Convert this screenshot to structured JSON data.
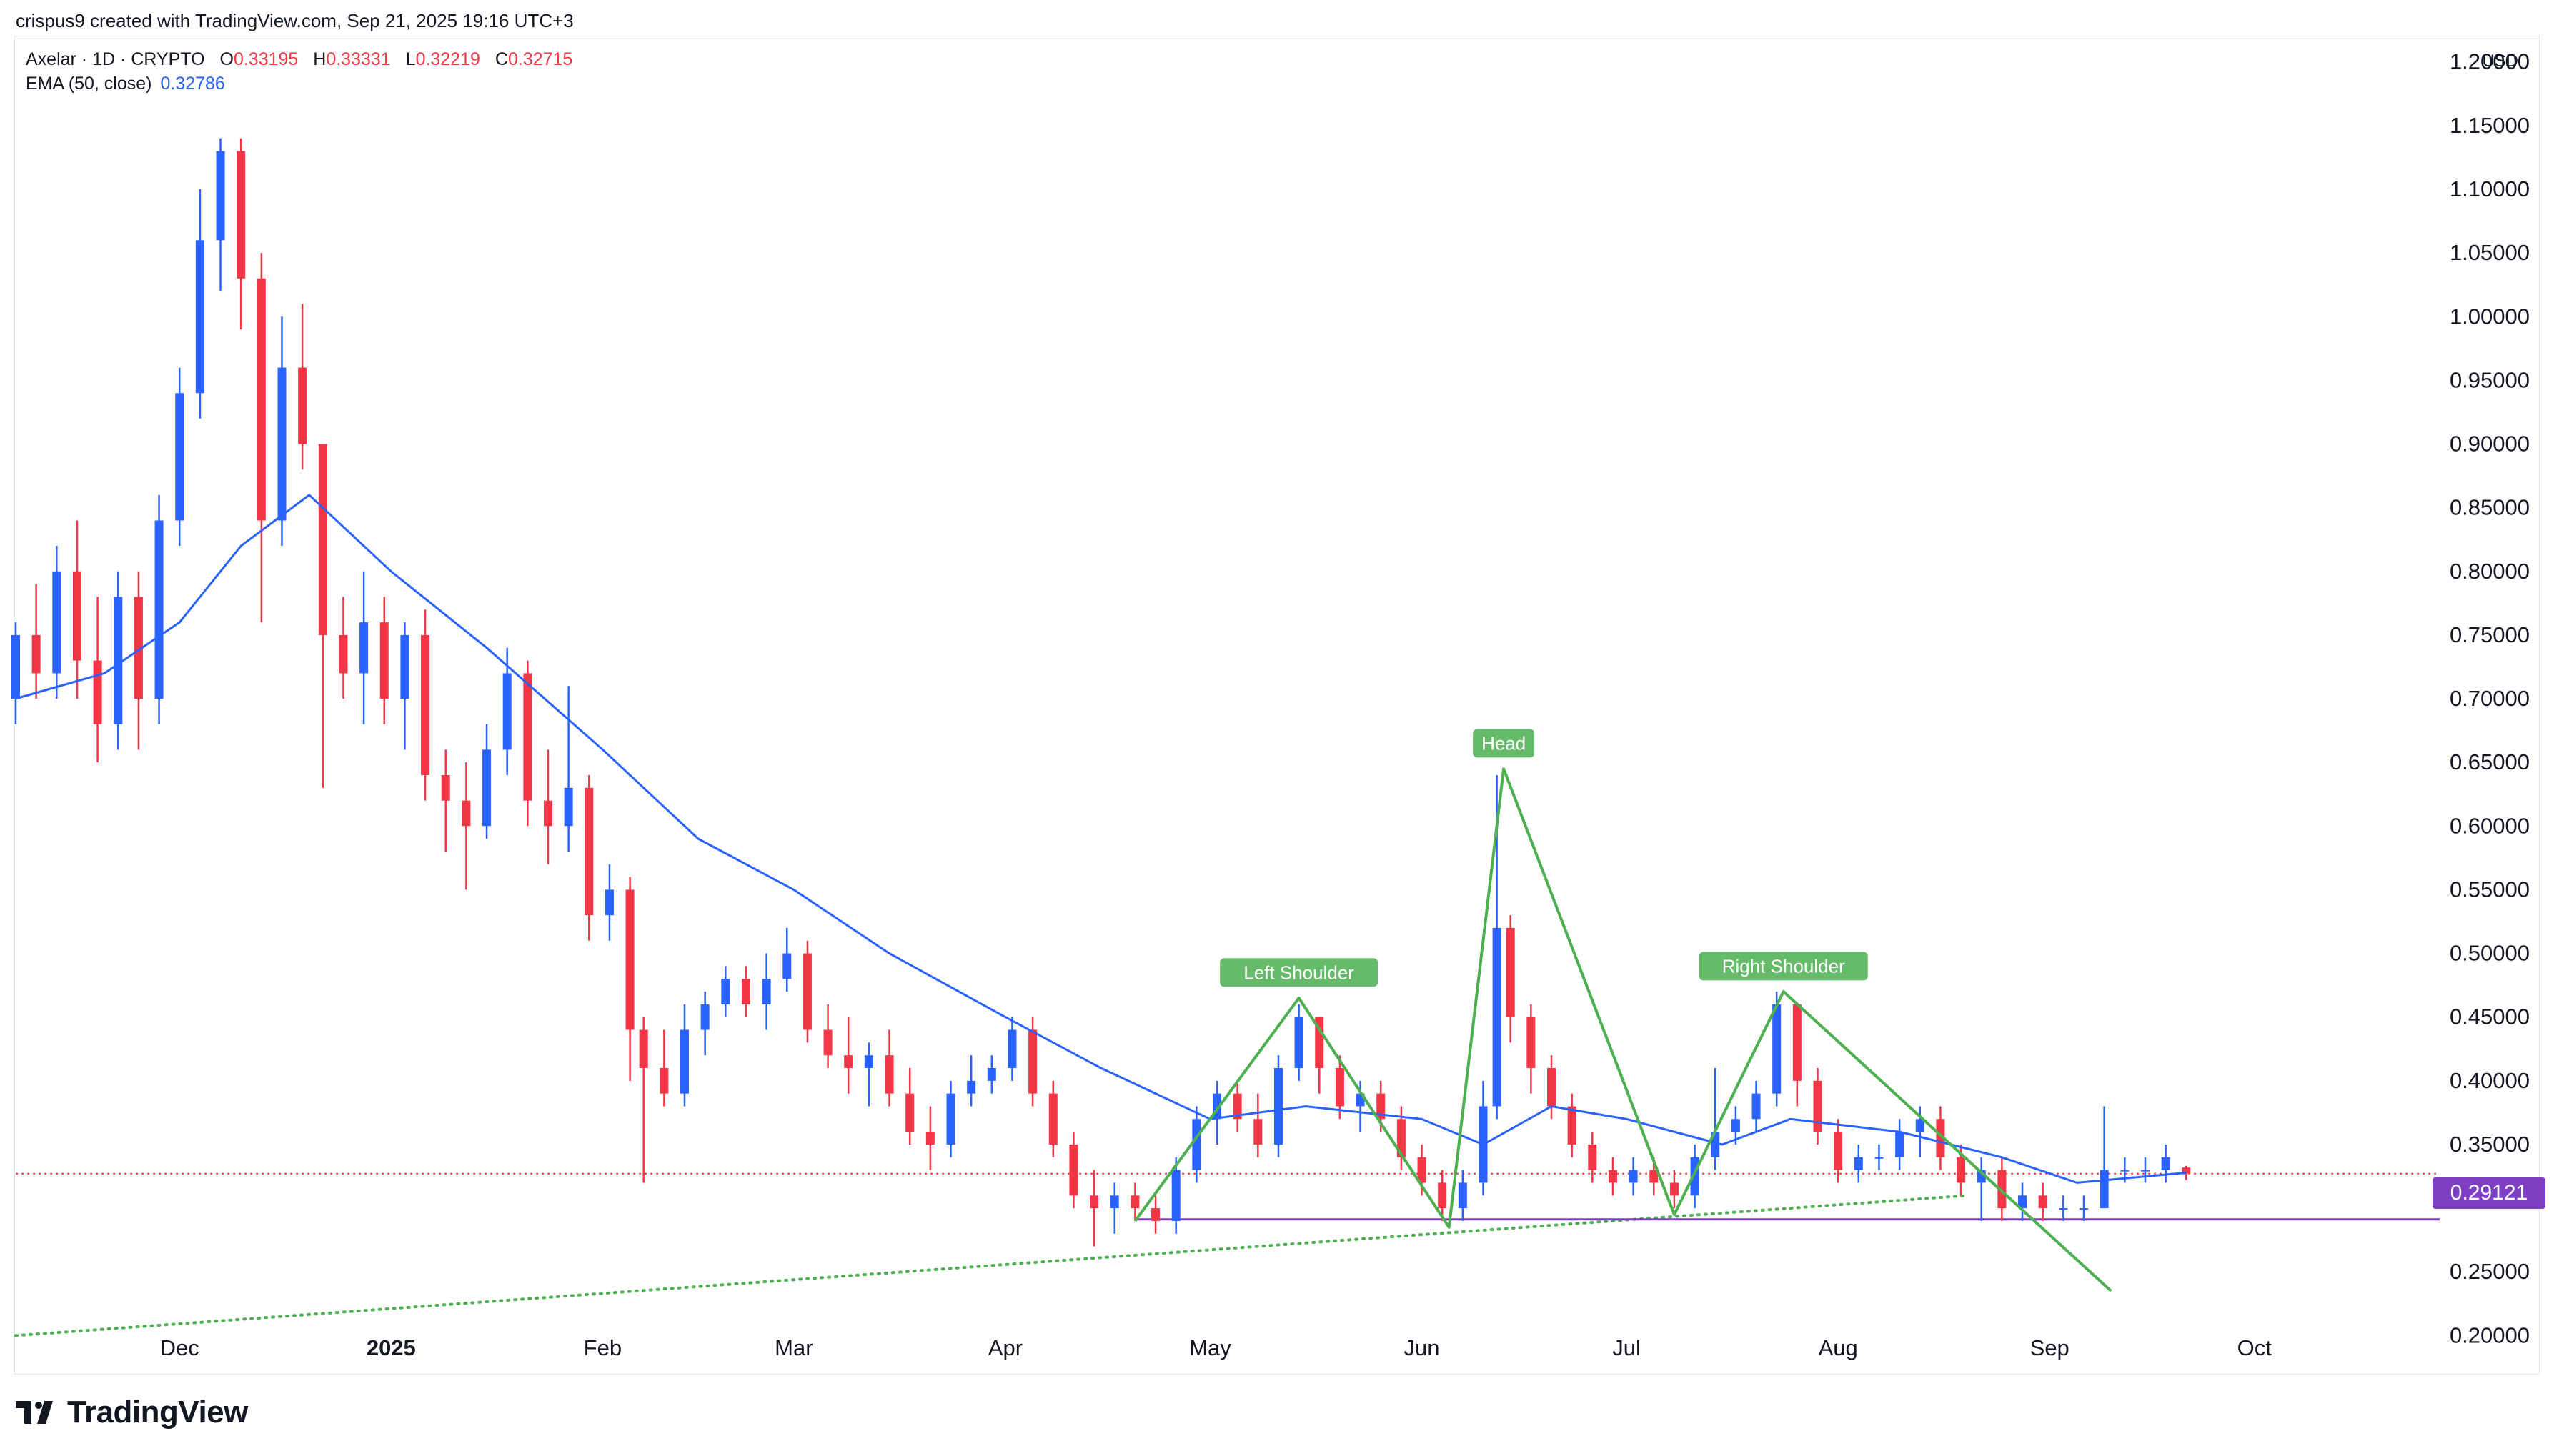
{
  "header": {
    "credit": "crispus9 created with TradingView.com, Sep 21, 2025 19:16 UTC+3"
  },
  "legend": {
    "symbol": "Axelar · 1D · CRYPTO",
    "o_label": "O",
    "o_value": "0.33195",
    "h_label": "H",
    "h_value": "0.33331",
    "l_label": "L",
    "l_value": "0.32219",
    "c_label": "C",
    "c_value": "0.32715",
    "ema_label": "EMA (50, close)",
    "ema_value": "0.32786"
  },
  "axis": {
    "currency": "USD"
  },
  "price_tag": "0.29121",
  "branding": {
    "logo_text": "TradingView"
  },
  "colors": {
    "up": "#2962ff",
    "down": "#f23645",
    "ema": "#2962ff",
    "pattern": "#4caf50",
    "support": "#7e3fc4",
    "last_price": "#f23645"
  },
  "chart_data": {
    "type": "candlestick",
    "ylim": [
      0.18,
      1.215
    ],
    "y_ticks": [
      0.2,
      0.25,
      0.35,
      0.4,
      0.45,
      0.5,
      0.55,
      0.6,
      0.65,
      0.7,
      0.75,
      0.8,
      0.85,
      0.9,
      0.95,
      1.0,
      1.05,
      1.1,
      1.15,
      1.2
    ],
    "y_tick_labels": [
      "0.20000",
      "0.25000",
      "0.35000",
      "0.40000",
      "0.45000",
      "0.50000",
      "0.55000",
      "0.60000",
      "0.65000",
      "0.70000",
      "0.75000",
      "0.80000",
      "0.85000",
      "0.90000",
      "0.95000",
      "1.00000",
      "1.05000",
      "1.10000",
      "1.15000",
      "1.20000"
    ],
    "x_start": "2024-11-07",
    "x_end": "2025-10-25",
    "x_labels": [
      {
        "date": "2024-12-01",
        "label": "Dec",
        "bold": false
      },
      {
        "date": "2025-01-01",
        "label": "2025",
        "bold": true
      },
      {
        "date": "2025-02-01",
        "label": "Feb",
        "bold": false
      },
      {
        "date": "2025-03-01",
        "label": "Mar",
        "bold": false
      },
      {
        "date": "2025-04-01",
        "label": "Apr",
        "bold": false
      },
      {
        "date": "2025-05-01",
        "label": "May",
        "bold": false
      },
      {
        "date": "2025-06-01",
        "label": "Jun",
        "bold": false
      },
      {
        "date": "2025-07-01",
        "label": "Jul",
        "bold": false
      },
      {
        "date": "2025-08-01",
        "label": "Aug",
        "bold": false
      },
      {
        "date": "2025-09-01",
        "label": "Sep",
        "bold": false
      },
      {
        "date": "2025-10-01",
        "label": "Oct",
        "bold": false
      }
    ],
    "candles": [
      {
        "date": "2024-11-07",
        "o": 0.7,
        "h": 0.76,
        "l": 0.68,
        "c": 0.75
      },
      {
        "date": "2024-11-10",
        "o": 0.75,
        "h": 0.79,
        "l": 0.7,
        "c": 0.72
      },
      {
        "date": "2024-11-13",
        "o": 0.72,
        "h": 0.82,
        "l": 0.7,
        "c": 0.8
      },
      {
        "date": "2024-11-16",
        "o": 0.8,
        "h": 0.84,
        "l": 0.7,
        "c": 0.73
      },
      {
        "date": "2024-11-19",
        "o": 0.73,
        "h": 0.78,
        "l": 0.65,
        "c": 0.68
      },
      {
        "date": "2024-11-22",
        "o": 0.68,
        "h": 0.8,
        "l": 0.66,
        "c": 0.78
      },
      {
        "date": "2024-11-25",
        "o": 0.78,
        "h": 0.8,
        "l": 0.66,
        "c": 0.7
      },
      {
        "date": "2024-11-28",
        "o": 0.7,
        "h": 0.86,
        "l": 0.68,
        "c": 0.84
      },
      {
        "date": "2024-12-01",
        "o": 0.84,
        "h": 0.96,
        "l": 0.82,
        "c": 0.94
      },
      {
        "date": "2024-12-04",
        "o": 0.94,
        "h": 1.1,
        "l": 0.92,
        "c": 1.06
      },
      {
        "date": "2024-12-07",
        "o": 1.06,
        "h": 1.14,
        "l": 1.02,
        "c": 1.13
      },
      {
        "date": "2024-12-10",
        "o": 1.13,
        "h": 1.14,
        "l": 0.99,
        "c": 1.03
      },
      {
        "date": "2024-12-13",
        "o": 1.03,
        "h": 1.05,
        "l": 0.76,
        "c": 0.84
      },
      {
        "date": "2024-12-16",
        "o": 0.84,
        "h": 1.0,
        "l": 0.82,
        "c": 0.96
      },
      {
        "date": "2024-12-19",
        "o": 0.96,
        "h": 1.01,
        "l": 0.88,
        "c": 0.9
      },
      {
        "date": "2024-12-22",
        "o": 0.9,
        "h": 0.9,
        "l": 0.63,
        "c": 0.75
      },
      {
        "date": "2024-12-25",
        "o": 0.75,
        "h": 0.78,
        "l": 0.7,
        "c": 0.72
      },
      {
        "date": "2024-12-28",
        "o": 0.72,
        "h": 0.8,
        "l": 0.68,
        "c": 0.76
      },
      {
        "date": "2024-12-31",
        "o": 0.76,
        "h": 0.78,
        "l": 0.68,
        "c": 0.7
      },
      {
        "date": "2025-01-03",
        "o": 0.7,
        "h": 0.76,
        "l": 0.66,
        "c": 0.75
      },
      {
        "date": "2025-01-06",
        "o": 0.75,
        "h": 0.77,
        "l": 0.62,
        "c": 0.64
      },
      {
        "date": "2025-01-09",
        "o": 0.64,
        "h": 0.66,
        "l": 0.58,
        "c": 0.62
      },
      {
        "date": "2025-01-12",
        "o": 0.62,
        "h": 0.65,
        "l": 0.55,
        "c": 0.6
      },
      {
        "date": "2025-01-15",
        "o": 0.6,
        "h": 0.68,
        "l": 0.59,
        "c": 0.66
      },
      {
        "date": "2025-01-18",
        "o": 0.66,
        "h": 0.74,
        "l": 0.64,
        "c": 0.72
      },
      {
        "date": "2025-01-21",
        "o": 0.72,
        "h": 0.73,
        "l": 0.6,
        "c": 0.62
      },
      {
        "date": "2025-01-24",
        "o": 0.62,
        "h": 0.66,
        "l": 0.57,
        "c": 0.6
      },
      {
        "date": "2025-01-27",
        "o": 0.6,
        "h": 0.71,
        "l": 0.58,
        "c": 0.63
      },
      {
        "date": "2025-01-30",
        "o": 0.63,
        "h": 0.64,
        "l": 0.51,
        "c": 0.53
      },
      {
        "date": "2025-02-02",
        "o": 0.53,
        "h": 0.57,
        "l": 0.51,
        "c": 0.55
      },
      {
        "date": "2025-02-05",
        "o": 0.55,
        "h": 0.56,
        "l": 0.4,
        "c": 0.44
      },
      {
        "date": "2025-02-07",
        "o": 0.44,
        "h": 0.45,
        "l": 0.32,
        "c": 0.41
      },
      {
        "date": "2025-02-10",
        "o": 0.41,
        "h": 0.44,
        "l": 0.38,
        "c": 0.39
      },
      {
        "date": "2025-02-13",
        "o": 0.39,
        "h": 0.46,
        "l": 0.38,
        "c": 0.44
      },
      {
        "date": "2025-02-16",
        "o": 0.44,
        "h": 0.47,
        "l": 0.42,
        "c": 0.46
      },
      {
        "date": "2025-02-19",
        "o": 0.46,
        "h": 0.49,
        "l": 0.45,
        "c": 0.48
      },
      {
        "date": "2025-02-22",
        "o": 0.48,
        "h": 0.49,
        "l": 0.45,
        "c": 0.46
      },
      {
        "date": "2025-02-25",
        "o": 0.46,
        "h": 0.5,
        "l": 0.44,
        "c": 0.48
      },
      {
        "date": "2025-02-28",
        "o": 0.48,
        "h": 0.52,
        "l": 0.47,
        "c": 0.5
      },
      {
        "date": "2025-03-03",
        "o": 0.5,
        "h": 0.51,
        "l": 0.43,
        "c": 0.44
      },
      {
        "date": "2025-03-06",
        "o": 0.44,
        "h": 0.46,
        "l": 0.41,
        "c": 0.42
      },
      {
        "date": "2025-03-09",
        "o": 0.42,
        "h": 0.45,
        "l": 0.39,
        "c": 0.41
      },
      {
        "date": "2025-03-12",
        "o": 0.41,
        "h": 0.43,
        "l": 0.38,
        "c": 0.42
      },
      {
        "date": "2025-03-15",
        "o": 0.42,
        "h": 0.44,
        "l": 0.38,
        "c": 0.39
      },
      {
        "date": "2025-03-18",
        "o": 0.39,
        "h": 0.41,
        "l": 0.35,
        "c": 0.36
      },
      {
        "date": "2025-03-21",
        "o": 0.36,
        "h": 0.38,
        "l": 0.33,
        "c": 0.35
      },
      {
        "date": "2025-03-24",
        "o": 0.35,
        "h": 0.4,
        "l": 0.34,
        "c": 0.39
      },
      {
        "date": "2025-03-27",
        "o": 0.39,
        "h": 0.42,
        "l": 0.38,
        "c": 0.4
      },
      {
        "date": "2025-03-30",
        "o": 0.4,
        "h": 0.42,
        "l": 0.39,
        "c": 0.41
      },
      {
        "date": "2025-04-02",
        "o": 0.41,
        "h": 0.45,
        "l": 0.4,
        "c": 0.44
      },
      {
        "date": "2025-04-05",
        "o": 0.44,
        "h": 0.45,
        "l": 0.38,
        "c": 0.39
      },
      {
        "date": "2025-04-08",
        "o": 0.39,
        "h": 0.4,
        "l": 0.34,
        "c": 0.35
      },
      {
        "date": "2025-04-11",
        "o": 0.35,
        "h": 0.36,
        "l": 0.3,
        "c": 0.31
      },
      {
        "date": "2025-04-14",
        "o": 0.31,
        "h": 0.33,
        "l": 0.27,
        "c": 0.3
      },
      {
        "date": "2025-04-17",
        "o": 0.3,
        "h": 0.32,
        "l": 0.28,
        "c": 0.31
      },
      {
        "date": "2025-04-20",
        "o": 0.31,
        "h": 0.32,
        "l": 0.29,
        "c": 0.3
      },
      {
        "date": "2025-04-23",
        "o": 0.3,
        "h": 0.31,
        "l": 0.28,
        "c": 0.29
      },
      {
        "date": "2025-04-26",
        "o": 0.29,
        "h": 0.34,
        "l": 0.28,
        "c": 0.33
      },
      {
        "date": "2025-04-29",
        "o": 0.33,
        "h": 0.38,
        "l": 0.32,
        "c": 0.37
      },
      {
        "date": "2025-05-02",
        "o": 0.37,
        "h": 0.4,
        "l": 0.35,
        "c": 0.39
      },
      {
        "date": "2025-05-05",
        "o": 0.39,
        "h": 0.4,
        "l": 0.36,
        "c": 0.37
      },
      {
        "date": "2025-05-08",
        "o": 0.37,
        "h": 0.39,
        "l": 0.34,
        "c": 0.35
      },
      {
        "date": "2025-05-11",
        "o": 0.35,
        "h": 0.42,
        "l": 0.34,
        "c": 0.41
      },
      {
        "date": "2025-05-14",
        "o": 0.41,
        "h": 0.46,
        "l": 0.4,
        "c": 0.45
      },
      {
        "date": "2025-05-17",
        "o": 0.45,
        "h": 0.45,
        "l": 0.39,
        "c": 0.41
      },
      {
        "date": "2025-05-20",
        "o": 0.41,
        "h": 0.42,
        "l": 0.37,
        "c": 0.38
      },
      {
        "date": "2025-05-23",
        "o": 0.38,
        "h": 0.4,
        "l": 0.36,
        "c": 0.39
      },
      {
        "date": "2025-05-26",
        "o": 0.39,
        "h": 0.4,
        "l": 0.36,
        "c": 0.37
      },
      {
        "date": "2025-05-29",
        "o": 0.37,
        "h": 0.38,
        "l": 0.33,
        "c": 0.34
      },
      {
        "date": "2025-06-01",
        "o": 0.34,
        "h": 0.35,
        "l": 0.31,
        "c": 0.32
      },
      {
        "date": "2025-06-04",
        "o": 0.32,
        "h": 0.33,
        "l": 0.29,
        "c": 0.3
      },
      {
        "date": "2025-06-07",
        "o": 0.3,
        "h": 0.33,
        "l": 0.29,
        "c": 0.32
      },
      {
        "date": "2025-06-10",
        "o": 0.32,
        "h": 0.4,
        "l": 0.31,
        "c": 0.38
      },
      {
        "date": "2025-06-12",
        "o": 0.38,
        "h": 0.64,
        "l": 0.37,
        "c": 0.52
      },
      {
        "date": "2025-06-14",
        "o": 0.52,
        "h": 0.53,
        "l": 0.43,
        "c": 0.45
      },
      {
        "date": "2025-06-17",
        "o": 0.45,
        "h": 0.46,
        "l": 0.39,
        "c": 0.41
      },
      {
        "date": "2025-06-20",
        "o": 0.41,
        "h": 0.42,
        "l": 0.37,
        "c": 0.38
      },
      {
        "date": "2025-06-23",
        "o": 0.38,
        "h": 0.39,
        "l": 0.34,
        "c": 0.35
      },
      {
        "date": "2025-06-26",
        "o": 0.35,
        "h": 0.36,
        "l": 0.32,
        "c": 0.33
      },
      {
        "date": "2025-06-29",
        "o": 0.33,
        "h": 0.34,
        "l": 0.31,
        "c": 0.32
      },
      {
        "date": "2025-07-02",
        "o": 0.32,
        "h": 0.34,
        "l": 0.31,
        "c": 0.33
      },
      {
        "date": "2025-07-05",
        "o": 0.33,
        "h": 0.34,
        "l": 0.31,
        "c": 0.32
      },
      {
        "date": "2025-07-08",
        "o": 0.32,
        "h": 0.33,
        "l": 0.3,
        "c": 0.31
      },
      {
        "date": "2025-07-11",
        "o": 0.31,
        "h": 0.35,
        "l": 0.3,
        "c": 0.34
      },
      {
        "date": "2025-07-14",
        "o": 0.34,
        "h": 0.41,
        "l": 0.33,
        "c": 0.36
      },
      {
        "date": "2025-07-17",
        "o": 0.36,
        "h": 0.38,
        "l": 0.35,
        "c": 0.37
      },
      {
        "date": "2025-07-20",
        "o": 0.37,
        "h": 0.4,
        "l": 0.36,
        "c": 0.39
      },
      {
        "date": "2025-07-23",
        "o": 0.39,
        "h": 0.47,
        "l": 0.38,
        "c": 0.46
      },
      {
        "date": "2025-07-26",
        "o": 0.46,
        "h": 0.46,
        "l": 0.38,
        "c": 0.4
      },
      {
        "date": "2025-07-29",
        "o": 0.4,
        "h": 0.41,
        "l": 0.35,
        "c": 0.36
      },
      {
        "date": "2025-08-01",
        "o": 0.36,
        "h": 0.37,
        "l": 0.32,
        "c": 0.33
      },
      {
        "date": "2025-08-04",
        "o": 0.33,
        "h": 0.35,
        "l": 0.32,
        "c": 0.34
      },
      {
        "date": "2025-08-07",
        "o": 0.34,
        "h": 0.35,
        "l": 0.33,
        "c": 0.34
      },
      {
        "date": "2025-08-10",
        "o": 0.34,
        "h": 0.37,
        "l": 0.33,
        "c": 0.36
      },
      {
        "date": "2025-08-13",
        "o": 0.36,
        "h": 0.38,
        "l": 0.34,
        "c": 0.37
      },
      {
        "date": "2025-08-16",
        "o": 0.37,
        "h": 0.38,
        "l": 0.33,
        "c": 0.34
      },
      {
        "date": "2025-08-19",
        "o": 0.34,
        "h": 0.35,
        "l": 0.31,
        "c": 0.32
      },
      {
        "date": "2025-08-22",
        "o": 0.32,
        "h": 0.34,
        "l": 0.29,
        "c": 0.33
      },
      {
        "date": "2025-08-25",
        "o": 0.33,
        "h": 0.34,
        "l": 0.29,
        "c": 0.3
      },
      {
        "date": "2025-08-28",
        "o": 0.3,
        "h": 0.32,
        "l": 0.29,
        "c": 0.31
      },
      {
        "date": "2025-08-31",
        "o": 0.31,
        "h": 0.32,
        "l": 0.29,
        "c": 0.3
      },
      {
        "date": "2025-09-03",
        "o": 0.3,
        "h": 0.31,
        "l": 0.29,
        "c": 0.3
      },
      {
        "date": "2025-09-06",
        "o": 0.3,
        "h": 0.31,
        "l": 0.29,
        "c": 0.3
      },
      {
        "date": "2025-09-09",
        "o": 0.3,
        "h": 0.38,
        "l": 0.3,
        "c": 0.33
      },
      {
        "date": "2025-09-12",
        "o": 0.33,
        "h": 0.34,
        "l": 0.32,
        "c": 0.33
      },
      {
        "date": "2025-09-15",
        "o": 0.33,
        "h": 0.34,
        "l": 0.32,
        "c": 0.33
      },
      {
        "date": "2025-09-18",
        "o": 0.33,
        "h": 0.35,
        "l": 0.32,
        "c": 0.34
      },
      {
        "date": "2025-09-21",
        "o": 0.33195,
        "h": 0.33331,
        "l": 0.32219,
        "c": 0.32715
      }
    ],
    "ema": [
      {
        "date": "2024-11-07",
        "v": 0.7
      },
      {
        "date": "2024-11-20",
        "v": 0.72
      },
      {
        "date": "2024-12-01",
        "v": 0.76
      },
      {
        "date": "2024-12-10",
        "v": 0.82
      },
      {
        "date": "2024-12-20",
        "v": 0.86
      },
      {
        "date": "2025-01-01",
        "v": 0.8
      },
      {
        "date": "2025-01-15",
        "v": 0.74
      },
      {
        "date": "2025-02-01",
        "v": 0.66
      },
      {
        "date": "2025-02-15",
        "v": 0.59
      },
      {
        "date": "2025-03-01",
        "v": 0.55
      },
      {
        "date": "2025-03-15",
        "v": 0.5
      },
      {
        "date": "2025-04-01",
        "v": 0.45
      },
      {
        "date": "2025-04-15",
        "v": 0.41
      },
      {
        "date": "2025-05-01",
        "v": 0.37
      },
      {
        "date": "2025-05-15",
        "v": 0.38
      },
      {
        "date": "2025-06-01",
        "v": 0.37
      },
      {
        "date": "2025-06-10",
        "v": 0.35
      },
      {
        "date": "2025-06-20",
        "v": 0.38
      },
      {
        "date": "2025-07-01",
        "v": 0.37
      },
      {
        "date": "2025-07-15",
        "v": 0.35
      },
      {
        "date": "2025-07-25",
        "v": 0.37
      },
      {
        "date": "2025-08-10",
        "v": 0.36
      },
      {
        "date": "2025-08-25",
        "v": 0.34
      },
      {
        "date": "2025-09-05",
        "v": 0.32
      },
      {
        "date": "2025-09-21",
        "v": 0.32786
      }
    ],
    "last_price": 0.32715,
    "support_level": 0.29121,
    "support_from": "2025-04-20",
    "trendline": [
      {
        "date": "2024-11-07",
        "v": 0.2
      },
      {
        "date": "2025-08-20",
        "v": 0.31
      }
    ],
    "pattern": [
      {
        "date": "2025-04-20",
        "v": 0.29
      },
      {
        "date": "2025-05-14",
        "v": 0.465
      },
      {
        "date": "2025-06-05",
        "v": 0.285
      },
      {
        "date": "2025-06-13",
        "v": 0.645
      },
      {
        "date": "2025-07-08",
        "v": 0.295
      },
      {
        "date": "2025-07-24",
        "v": 0.47
      },
      {
        "date": "2025-09-10",
        "v": 0.235
      }
    ],
    "annotations": [
      {
        "label": "Left Shoulder",
        "date": "2025-05-14",
        "v": 0.485
      },
      {
        "label": "Head",
        "date": "2025-06-13",
        "v": 0.665
      },
      {
        "label": "Right Shoulder",
        "date": "2025-07-24",
        "v": 0.49
      }
    ]
  }
}
